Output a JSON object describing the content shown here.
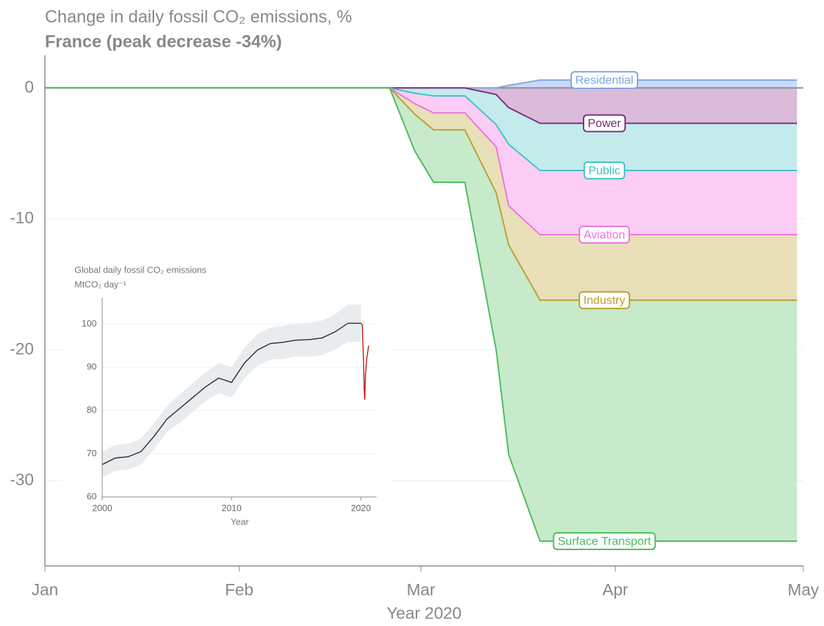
{
  "chart_data": [
    {
      "type": "area",
      "stacked": true,
      "title": "Change in daily fossil CO₂ emissions, %",
      "subtitle": "France (peak decrease -34%)",
      "x_label": "Year 2020",
      "x": [
        0,
        55,
        59,
        62,
        67,
        72,
        74,
        79,
        120
      ],
      "xlim": [
        0,
        121
      ],
      "xticks": [
        {
          "value": 0,
          "label": "Jan"
        },
        {
          "value": 31,
          "label": "Feb"
        },
        {
          "value": 60,
          "label": "Mar"
        },
        {
          "value": 91,
          "label": "Apr"
        },
        {
          "value": 121,
          "label": "May"
        }
      ],
      "ylim": [
        -36.5,
        2.5
      ],
      "yticks": [
        0,
        -10,
        -20,
        -30
      ],
      "grid": true,
      "series": [
        {
          "name": "Residential",
          "color": "#7ea6e6",
          "fill": "#c3d5f6",
          "values": [
            0,
            0,
            0,
            0,
            0,
            0,
            0.2,
            0.6,
            0.6
          ]
        },
        {
          "name": "Power",
          "color": "#7a2c7a",
          "fill": "#d6b4d6",
          "values": [
            0,
            0,
            0,
            0,
            0,
            -0.5,
            -1.5,
            -2.7,
            -2.7
          ]
        },
        {
          "name": "Public",
          "color": "#3fc2c6",
          "fill": "#bde9ea",
          "values": [
            0,
            0,
            -0.4,
            -0.6,
            -0.6,
            -2.3,
            -2.8,
            -3.6,
            -3.6
          ]
        },
        {
          "name": "Aviation",
          "color": "#ee74de",
          "fill": "#fbc8f4",
          "values": [
            0,
            0,
            -0.8,
            -1.3,
            -1.3,
            -1.7,
            -4.7,
            -4.9,
            -4.9
          ]
        },
        {
          "name": "Industry",
          "color": "#b9a12e",
          "fill": "#e7dbb0",
          "values": [
            0,
            0,
            -0.8,
            -1.3,
            -1.3,
            -3.5,
            -3,
            -5,
            -5
          ]
        },
        {
          "name": "Surface Transport",
          "color": "#4cbb5a",
          "fill": "#c0e8c4",
          "values": [
            0,
            0,
            -2.8,
            -4,
            -4,
            -12,
            -16,
            -18.4,
            -18.4
          ]
        }
      ]
    },
    {
      "type": "line",
      "title": "Global daily fossil CO₂ emissions",
      "y_label": "MtCO₂ day⁻¹",
      "x_label": "Year",
      "xlim": [
        2000,
        2021.2
      ],
      "xticks": [
        2000,
        2010,
        2020
      ],
      "ylim": [
        60,
        106
      ],
      "yticks": [
        60,
        70,
        80,
        90,
        100
      ],
      "series": [
        {
          "color": "#333333",
          "band_color": "#e9ecee",
          "x": [
            2000,
            2001,
            2002,
            2003,
            2004,
            2005,
            2006,
            2007,
            2008,
            2009,
            2010,
            2011,
            2012,
            2013,
            2014,
            2015,
            2016,
            2017,
            2018,
            2019,
            2020
          ],
          "values": [
            67.5,
            69,
            69.3,
            70.5,
            74,
            78,
            80.5,
            83,
            85.5,
            87.5,
            86.5,
            91,
            94,
            95.5,
            95.8,
            96.3,
            96.4,
            96.8,
            98.2,
            100.2,
            100.2
          ],
          "band_low": [
            64.5,
            66,
            66.3,
            67.5,
            71,
            75,
            77.2,
            79.7,
            82.2,
            84,
            83,
            87.5,
            90.3,
            91.8,
            92,
            92.5,
            92.5,
            92.8,
            94.1,
            95.9,
            95.9
          ],
          "band_high": [
            70.5,
            72,
            72.3,
            73.5,
            77,
            81,
            83.8,
            86.3,
            88.8,
            91,
            90,
            94.5,
            97.7,
            99.2,
            99.6,
            100.1,
            100.3,
            100.8,
            102.3,
            104.5,
            104.5
          ]
        },
        {
          "color": "#c81e1e",
          "x": [
            2020,
            2020.1,
            2020.15,
            2020.2,
            2020.25,
            2020.3,
            2020.35,
            2020.45,
            2020.6
          ],
          "values": [
            100.2,
            99.8,
            96,
            92,
            85,
            82.5,
            88,
            92,
            95
          ]
        }
      ]
    }
  ]
}
